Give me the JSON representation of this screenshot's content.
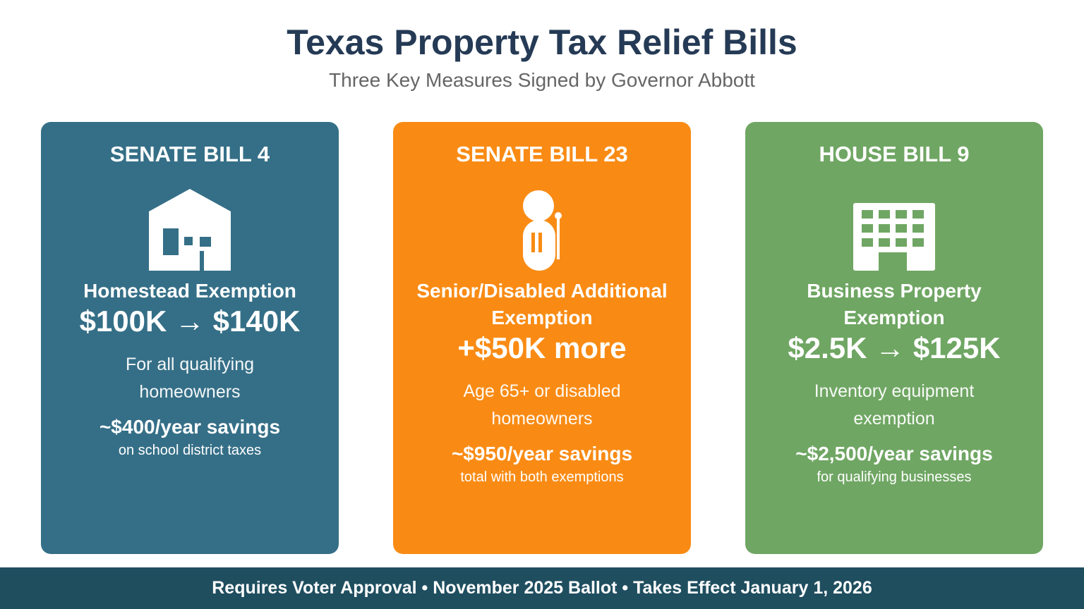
{
  "header": {
    "title": "Texas Property Tax Relief Bills",
    "subtitle": "Three Key Measures Signed by Governor Abbott"
  },
  "cards": [
    {
      "bill": "SENATE BILL 4",
      "color": "#356f87",
      "heading": "Homestead Exemption",
      "amount": "$100K → $140K",
      "description": "For all qualifying homeowners",
      "savings": "~$400/year savings",
      "note": "on school district taxes"
    },
    {
      "bill": "SENATE BILL 23",
      "color": "#f98b14",
      "heading": "Senior/Disabled Additional Exemption",
      "amount": "+$50K more",
      "description": "Age 65+ or disabled homeowners",
      "savings": "~$950/year savings",
      "note": "total with both exemptions"
    },
    {
      "bill": "HOUSE BILL 9",
      "color": "#6fa663",
      "heading": "Business Property Exemption",
      "amount": "$2.5K → $125K",
      "description": "Inventory equipment exemption",
      "savings": "~$2,500/year savings",
      "note": "for qualifying businesses"
    }
  ],
  "footer": {
    "text": "Requires Voter Approval • November 2025 Ballot • Takes Effect January 1, 2026"
  }
}
